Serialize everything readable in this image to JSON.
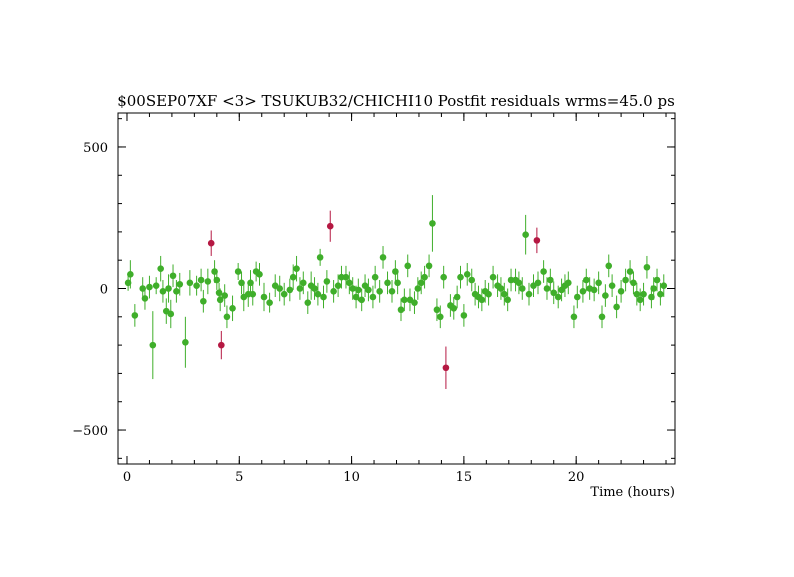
{
  "chart_data": {
    "type": "scatter",
    "title": "$00SEP07XF <3> TSUKUB32/CHICHI10 Postfit residuals wrms=45.0  ps",
    "xlabel": "Time (hours)",
    "ylabel": "",
    "xlim": [
      -0.4,
      24.4
    ],
    "ylim": [
      -620,
      620
    ],
    "x_ticks": [
      0,
      5,
      10,
      15,
      20
    ],
    "y_ticks": [
      -500,
      0,
      500
    ],
    "x_minor_step": 1,
    "y_minor_step": 100,
    "grid": false,
    "colors": {
      "good": "#3fae2a",
      "outlier": "#b51842",
      "axis": "#000000"
    },
    "series": [
      {
        "points": [
          [
            0.05,
            20,
            28
          ],
          [
            0.15,
            50,
            50
          ],
          [
            0.35,
            -95,
            40
          ],
          [
            0.7,
            0,
            40
          ],
          [
            0.8,
            -35,
            40
          ],
          [
            1.0,
            5,
            40
          ],
          [
            1.15,
            -200,
            120
          ],
          [
            1.3,
            10,
            30
          ],
          [
            1.5,
            70,
            45
          ],
          [
            1.6,
            -10,
            40
          ],
          [
            1.75,
            -80,
            45
          ],
          [
            1.85,
            0,
            50
          ],
          [
            1.95,
            -90,
            50
          ],
          [
            2.05,
            45,
            40
          ],
          [
            2.2,
            -10,
            40
          ],
          [
            2.35,
            15,
            40
          ],
          [
            2.6,
            -190,
            90
          ],
          [
            2.8,
            20,
            45
          ],
          [
            3.1,
            10,
            35
          ],
          [
            3.3,
            30,
            40
          ],
          [
            3.4,
            -45,
            40
          ],
          [
            3.6,
            25,
            45
          ],
          [
            3.9,
            60,
            40
          ],
          [
            4.0,
            30,
            35
          ],
          [
            4.1,
            -15,
            35
          ],
          [
            4.15,
            -40,
            40
          ],
          [
            4.35,
            -25,
            40
          ],
          [
            4.45,
            -100,
            40
          ],
          [
            4.7,
            -70,
            45
          ],
          [
            4.95,
            60,
            30
          ],
          [
            5.1,
            20,
            40
          ],
          [
            5.2,
            -30,
            50
          ],
          [
            5.4,
            -20,
            45
          ],
          [
            5.5,
            20,
            45
          ],
          [
            5.6,
            -20,
            40
          ],
          [
            5.75,
            60,
            35
          ],
          [
            5.9,
            50,
            40
          ],
          [
            6.1,
            -30,
            50
          ],
          [
            6.35,
            -50,
            35
          ],
          [
            6.6,
            10,
            40
          ],
          [
            6.8,
            0,
            45
          ],
          [
            7.0,
            -20,
            40
          ],
          [
            7.25,
            -5,
            40
          ],
          [
            7.4,
            40,
            45
          ],
          [
            7.55,
            70,
            45
          ],
          [
            7.7,
            0,
            40
          ],
          [
            7.85,
            20,
            40
          ],
          [
            8.05,
            -50,
            40
          ],
          [
            8.2,
            10,
            50
          ],
          [
            8.35,
            0,
            40
          ],
          [
            8.5,
            -20,
            40
          ],
          [
            8.6,
            110,
            30
          ],
          [
            8.75,
            -30,
            40
          ],
          [
            8.9,
            25,
            40
          ],
          [
            9.2,
            -10,
            40
          ],
          [
            9.4,
            10,
            40
          ],
          [
            9.55,
            40,
            40
          ],
          [
            9.75,
            40,
            40
          ],
          [
            9.9,
            20,
            40
          ],
          [
            10.05,
            0,
            40
          ],
          [
            10.2,
            -30,
            40
          ],
          [
            10.3,
            -5,
            40
          ],
          [
            10.45,
            -40,
            40
          ],
          [
            10.6,
            10,
            40
          ],
          [
            10.75,
            -5,
            40
          ],
          [
            10.95,
            -30,
            40
          ],
          [
            11.05,
            40,
            40
          ],
          [
            11.25,
            -10,
            40
          ],
          [
            11.4,
            110,
            40
          ],
          [
            11.6,
            20,
            40
          ],
          [
            11.8,
            -10,
            40
          ],
          [
            11.95,
            60,
            40
          ],
          [
            12.05,
            20,
            40
          ],
          [
            12.2,
            -75,
            40
          ],
          [
            12.35,
            -40,
            40
          ],
          [
            12.5,
            80,
            40
          ],
          [
            12.6,
            -40,
            40
          ],
          [
            12.8,
            -50,
            40
          ],
          [
            12.95,
            0,
            40
          ],
          [
            13.1,
            20,
            40
          ],
          [
            13.25,
            40,
            40
          ],
          [
            13.45,
            80,
            40
          ],
          [
            13.6,
            230,
            100
          ],
          [
            13.8,
            -75,
            40
          ],
          [
            13.95,
            -100,
            40
          ],
          [
            14.1,
            40,
            40
          ],
          [
            14.4,
            -60,
            40
          ],
          [
            14.55,
            -70,
            40
          ],
          [
            14.7,
            -30,
            40
          ],
          [
            14.85,
            40,
            40
          ],
          [
            15.0,
            -95,
            40
          ],
          [
            15.15,
            50,
            40
          ],
          [
            15.35,
            30,
            40
          ],
          [
            15.5,
            -20,
            40
          ],
          [
            15.65,
            -30,
            40
          ],
          [
            15.8,
            -40,
            40
          ],
          [
            15.95,
            -10,
            40
          ],
          [
            16.1,
            -20,
            40
          ],
          [
            16.3,
            40,
            40
          ],
          [
            16.5,
            10,
            40
          ],
          [
            16.65,
            0,
            40
          ],
          [
            16.8,
            -20,
            40
          ],
          [
            16.95,
            -40,
            40
          ],
          [
            17.1,
            30,
            40
          ],
          [
            17.3,
            30,
            40
          ],
          [
            17.45,
            20,
            40
          ],
          [
            17.6,
            0,
            40
          ],
          [
            17.75,
            190,
            70
          ],
          [
            17.9,
            -20,
            40
          ],
          [
            18.1,
            10,
            40
          ],
          [
            18.3,
            20,
            40
          ],
          [
            18.55,
            60,
            40
          ],
          [
            18.7,
            0,
            40
          ],
          [
            18.85,
            30,
            40
          ],
          [
            19.0,
            -15,
            40
          ],
          [
            19.2,
            -30,
            40
          ],
          [
            19.35,
            -5,
            40
          ],
          [
            19.5,
            10,
            40
          ],
          [
            19.65,
            20,
            40
          ],
          [
            19.9,
            -100,
            40
          ],
          [
            20.05,
            -30,
            40
          ],
          [
            20.3,
            -10,
            40
          ],
          [
            20.45,
            30,
            40
          ],
          [
            20.6,
            0,
            40
          ],
          [
            20.8,
            -5,
            40
          ],
          [
            21.0,
            20,
            40
          ],
          [
            21.15,
            -100,
            40
          ],
          [
            21.3,
            -25,
            40
          ],
          [
            21.45,
            80,
            40
          ],
          [
            21.6,
            10,
            40
          ],
          [
            21.8,
            -65,
            40
          ],
          [
            22.0,
            -10,
            40
          ],
          [
            22.2,
            30,
            40
          ],
          [
            22.4,
            60,
            40
          ],
          [
            22.55,
            20,
            40
          ],
          [
            22.7,
            -20,
            40
          ],
          [
            22.85,
            -40,
            40
          ],
          [
            23.0,
            -20,
            40
          ],
          [
            23.15,
            75,
            40
          ],
          [
            23.35,
            -30,
            40
          ],
          [
            23.45,
            0,
            40
          ],
          [
            23.6,
            30,
            40
          ],
          [
            23.75,
            -20,
            40
          ],
          [
            23.9,
            10,
            40
          ]
        ]
      },
      {
        "points": [
          [
            3.75,
            160,
            45
          ],
          [
            4.2,
            -200,
            50
          ],
          [
            9.05,
            220,
            55
          ],
          [
            14.2,
            -280,
            75
          ],
          [
            18.25,
            170,
            45
          ]
        ]
      }
    ]
  }
}
